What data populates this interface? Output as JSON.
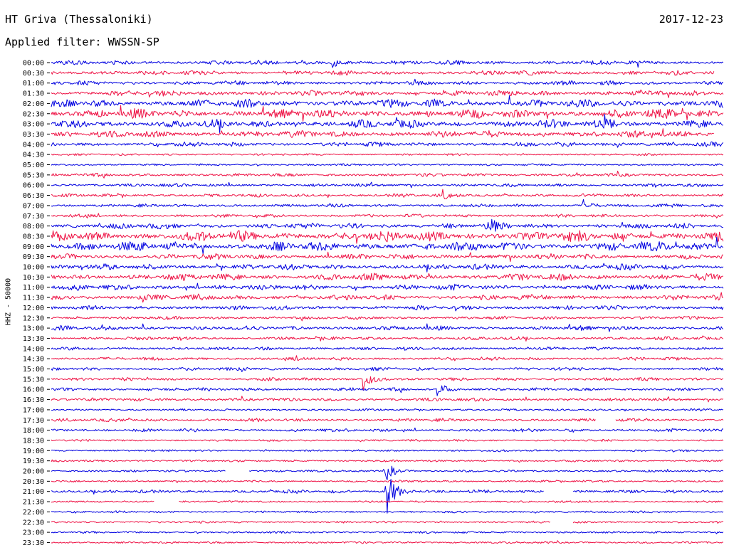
{
  "header": {
    "station": "HT Griva (Thessaloniki)",
    "date": "2017-12-23",
    "filter": "Applied filter: WWSSN-SP"
  },
  "chart_data": {
    "type": "line",
    "chart_kind": "helicorder",
    "ylabel": "HHZ - 50000",
    "row_labels": [
      "00:00",
      "00:30",
      "01:00",
      "01:30",
      "02:00",
      "02:30",
      "03:00",
      "03:30",
      "04:00",
      "04:30",
      "05:00",
      "05:30",
      "06:00",
      "06:30",
      "07:00",
      "07:30",
      "08:00",
      "08:30",
      "09:00",
      "09:30",
      "10:00",
      "10:30",
      "11:00",
      "11:30",
      "12:00",
      "12:30",
      "13:00",
      "13:30",
      "14:00",
      "14:30",
      "15:00",
      "15:30",
      "16:00",
      "16:30",
      "17:00",
      "17:30",
      "18:00",
      "18:30",
      "19:00",
      "19:30",
      "20:00",
      "20:30",
      "21:00",
      "21:30",
      "22:00",
      "22:30",
      "23:00",
      "23:30"
    ],
    "colors": [
      "#0000e0",
      "#ee1144"
    ],
    "row_amplitude": [
      3,
      3,
      3,
      4,
      6,
      7,
      6,
      5,
      3,
      1,
      1,
      2,
      2,
      2,
      2,
      2,
      4,
      8,
      7,
      4,
      4,
      5,
      4,
      4,
      3,
      2,
      3,
      2,
      2,
      2,
      2,
      2,
      2,
      2,
      1,
      2,
      2,
      1,
      1,
      1,
      1,
      1,
      2,
      1,
      1,
      1,
      1,
      1
    ],
    "events": [
      {
        "row": 0,
        "minute": 12.6,
        "amp": 6
      },
      {
        "row": 6,
        "minute": 24.7,
        "amp": 10
      },
      {
        "row": 13,
        "minute": 17.5,
        "amp": 6
      },
      {
        "row": 14,
        "minute": 23.8,
        "amp": 8
      },
      {
        "row": 16,
        "minute": 19.5,
        "amp": 10
      },
      {
        "row": 31,
        "minute": 14.0,
        "amp": 15
      },
      {
        "row": 32,
        "minute": 17.3,
        "amp": 9
      },
      {
        "row": 40,
        "minute": 15.0,
        "amp": 12
      },
      {
        "row": 42,
        "minute": 15.0,
        "amp": 30
      }
    ],
    "gaps": [
      {
        "row": 1,
        "start": 29.6,
        "end": 30
      },
      {
        "row": 7,
        "start": 29.6,
        "end": 30
      },
      {
        "row": 35,
        "start": 24.3,
        "end": 25.2
      },
      {
        "row": 40,
        "start": 7.8,
        "end": 8.8
      },
      {
        "row": 42,
        "start": 22.0,
        "end": 23.3
      },
      {
        "row": 43,
        "start": 4.6,
        "end": 5.7
      },
      {
        "row": 45,
        "start": 22.3,
        "end": 23.3
      }
    ]
  }
}
